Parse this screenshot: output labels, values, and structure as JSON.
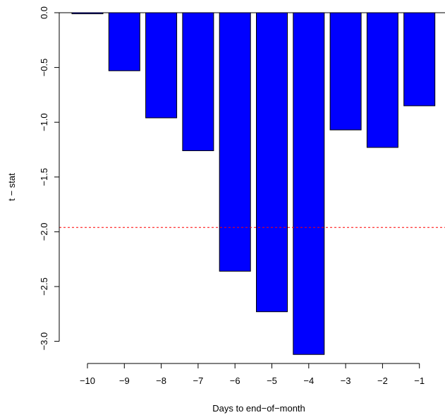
{
  "chart_data": {
    "type": "bar",
    "title": "",
    "xlabel": "Days to end−of−month",
    "ylabel": "t − stat",
    "categories": [
      "−10",
      "−9",
      "−8",
      "−7",
      "−6",
      "−5",
      "−4",
      "−3",
      "−2",
      "−1"
    ],
    "values": [
      -0.01,
      -0.53,
      -0.96,
      -1.26,
      -2.36,
      -2.73,
      -3.12,
      -1.07,
      -1.23,
      -0.85
    ],
    "ylim": [
      -3.2,
      0.0
    ],
    "yticks": [
      0.0,
      -0.5,
      -1.0,
      -1.5,
      -2.0,
      -2.5,
      -3.0
    ],
    "ytick_labels": [
      "0.0",
      "−0.5",
      "−1.0",
      "−1.5",
      "−2.0",
      "−2.5",
      "−3.0"
    ],
    "reference_line": -1.96,
    "bar_color": "#0000ff",
    "bar_outline_color": "#000000",
    "reference_line_color": "#ff0000",
    "reference_line_style": "dashed",
    "zero_line": true,
    "grid": false,
    "legend": "none"
  }
}
